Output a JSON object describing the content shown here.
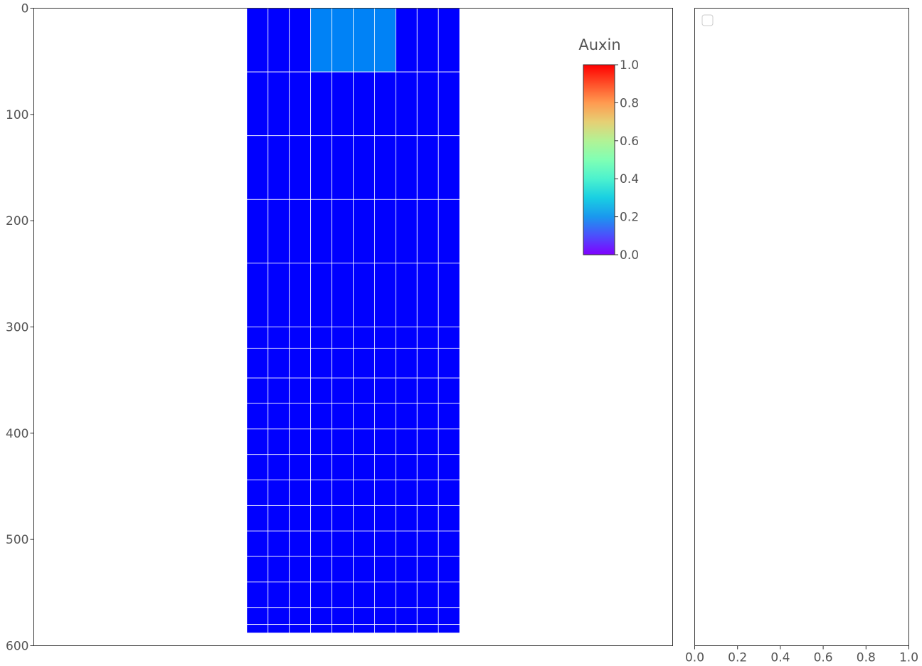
{
  "chart_data": [
    {
      "type": "heatmap",
      "title": "",
      "xlabel": "",
      "ylabel": "",
      "ylim": [
        600,
        0
      ],
      "y_ticks": [
        "0",
        "100",
        "200",
        "300",
        "400",
        "500",
        "600"
      ],
      "grid": false,
      "columns_x": [
        200,
        220,
        240,
        260,
        280,
        300,
        320,
        340,
        360,
        380,
        400
      ],
      "row_bounds": [
        0,
        60,
        120,
        180,
        240,
        300,
        320,
        348,
        372,
        396,
        420,
        444,
        468,
        492,
        516,
        540,
        564,
        580,
        588
      ],
      "values": [
        [
          0,
          0,
          0,
          0.17,
          0.17,
          0.17,
          0.17,
          0,
          0,
          0
        ],
        [
          0,
          0,
          0,
          0,
          0,
          0,
          0,
          0,
          0,
          0
        ],
        [
          0,
          0,
          0,
          0,
          0,
          0,
          0,
          0,
          0,
          0
        ],
        [
          0,
          0,
          0,
          0,
          0,
          0,
          0,
          0,
          0,
          0
        ],
        [
          0,
          0,
          0,
          0,
          0,
          0,
          0,
          0,
          0,
          0
        ],
        [
          0,
          0,
          0,
          0,
          0,
          0,
          0,
          0,
          0,
          0
        ],
        [
          0,
          0,
          0,
          0,
          0,
          0,
          0,
          0,
          0,
          0
        ],
        [
          0,
          0,
          0,
          0,
          0,
          0,
          0,
          0,
          0,
          0
        ],
        [
          0,
          0,
          0,
          0,
          0,
          0,
          0,
          0,
          0,
          0
        ],
        [
          0,
          0,
          0,
          0,
          0,
          0,
          0,
          0,
          0,
          0
        ],
        [
          0,
          0,
          0,
          0,
          0,
          0,
          0,
          0,
          0,
          0
        ],
        [
          0,
          0,
          0,
          0,
          0,
          0,
          0,
          0,
          0,
          0
        ],
        [
          0,
          0,
          0,
          0,
          0,
          0,
          0,
          0,
          0,
          0
        ],
        [
          0,
          0,
          0,
          0,
          0,
          0,
          0,
          0,
          0,
          0
        ],
        [
          0,
          0,
          0,
          0,
          0,
          0,
          0,
          0,
          0,
          0
        ],
        [
          0,
          0,
          0,
          0,
          0,
          0,
          0,
          0,
          0,
          0
        ],
        [
          0,
          0,
          0,
          0,
          0,
          0,
          0,
          0,
          0,
          0
        ],
        [
          0,
          0,
          0,
          0,
          0,
          0,
          0,
          0,
          0,
          0
        ]
      ],
      "colorbar": {
        "title": "Auxin",
        "range": [
          0,
          1
        ],
        "ticks": [
          "0.0",
          "0.2",
          "0.4",
          "0.6",
          "0.8",
          "1.0"
        ],
        "colormap": "rainbow",
        "placement": "top-right"
      },
      "cell_edge_color": "#ffffff"
    },
    {
      "type": "line",
      "title": "",
      "xlabel": "",
      "ylabel": "",
      "xlim": [
        0,
        1
      ],
      "x_ticks": [
        "0.0",
        "0.2",
        "0.4",
        "0.6",
        "0.8",
        "1.0"
      ],
      "series": [],
      "legend": "top-left",
      "grid": false
    }
  ]
}
